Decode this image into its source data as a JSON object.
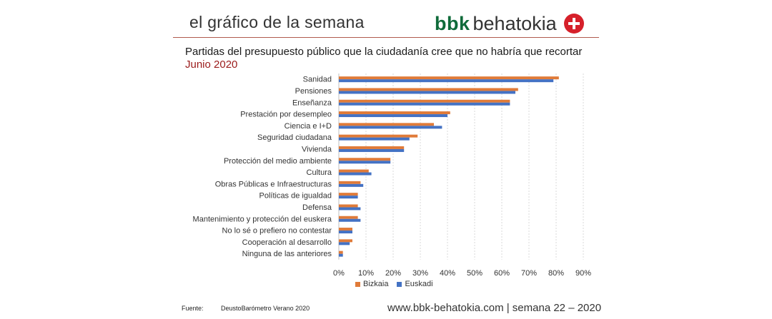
{
  "header": {
    "title": "el gráfico de la semana",
    "brand_bold": "bbk",
    "brand_rest": "behatokia",
    "brand_colors": {
      "bbk": "#0f6b3a",
      "cross_bg": "#d6202a",
      "rule": "#b05a4e"
    }
  },
  "chart_data": {
    "type": "bar",
    "orientation": "horizontal",
    "title": "Partidas del presupuesto público que la ciudadanía cree que no habría que recortar",
    "subtitle": "Junio 2020",
    "categories": [
      "Sanidad",
      "Pensiones",
      "Enseñanza",
      "Prestación por desempleo",
      "Ciencia e I+D",
      "Seguridad ciudadana",
      "Vivienda",
      "Protección del medio ambiente",
      "Cultura",
      "Obras Públicas e Infraestructuras",
      "Políticas de igualdad",
      "Defensa",
      "Mantenimiento y protección del euskera",
      "No lo sé o prefiero no contestar",
      "Cooperación al desarrollo",
      "Ninguna de las anteriores"
    ],
    "series": [
      {
        "name": "Bizkaia",
        "color": "#e07b39",
        "values": [
          81,
          66,
          63,
          41,
          35,
          29,
          24,
          19,
          11,
          8,
          7,
          7,
          7,
          5,
          5,
          1.5
        ]
      },
      {
        "name": "Euskadi",
        "color": "#4472c4",
        "values": [
          79,
          65,
          63,
          40,
          38,
          26,
          24,
          19,
          12,
          9,
          7,
          8,
          8,
          5,
          4,
          1.5
        ]
      }
    ],
    "xlim": [
      0,
      90
    ],
    "xticks": [
      "0%",
      "10%",
      "20%",
      "30%",
      "40%",
      "50%",
      "60%",
      "70%",
      "80%",
      "90%"
    ],
    "grid": "vertical dashed",
    "legend": "bottom-center"
  },
  "footer": {
    "source_label": "Fuente:",
    "source_value": "DeustoBarómetro Verano 2020",
    "url_text": "www.bbk-behatokia.com | semana 22 – 2020"
  }
}
